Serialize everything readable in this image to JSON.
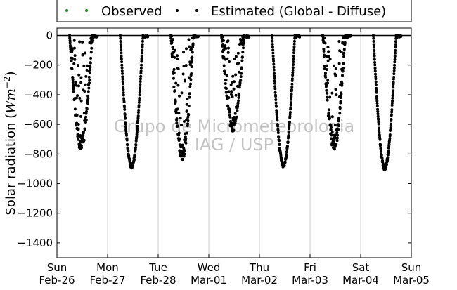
{
  "chart_data": {
    "type": "scatter",
    "title": "",
    "xlabel": "",
    "ylabel": "Solar radiation (Wm⁻²)",
    "ylabel_plain": "Solar radiation (",
    "ylabel_unit": "Wm",
    "ylabel_exp": "−2",
    "ylabel_close": ")",
    "xlim": [
      "2014-02-26T00:00",
      "2014-03-05T00:00"
    ],
    "ylim": [
      -1500,
      50
    ],
    "yticks": [
      0,
      -200,
      -400,
      -600,
      -800,
      -1000,
      -1200,
      -1400
    ],
    "ytick_labels": [
      "0",
      "−200",
      "−400",
      "−600",
      "−800",
      "−1000",
      "−1200",
      "−1400"
    ],
    "xticks": [
      {
        "day": "Sun",
        "date": "Feb-26"
      },
      {
        "day": "Mon",
        "date": "Feb-27"
      },
      {
        "day": "Tue",
        "date": "Feb-28"
      },
      {
        "day": "Wed",
        "date": "Mar-01"
      },
      {
        "day": "Thu",
        "date": "Mar-02"
      },
      {
        "day": "Fri",
        "date": "Mar-03"
      },
      {
        "day": "Sat",
        "date": "Mar-04"
      },
      {
        "day": "Sun",
        "date": "Mar-05"
      }
    ],
    "grid": "vertical day lines",
    "legend_position": "top-center, above plot",
    "watermark": [
      "Grupo de Micrometeorologia",
      "IAG / USP"
    ],
    "series": [
      {
        "name": "Observed",
        "color": "#1a8a1a",
        "marker": "dot",
        "points": []
      },
      {
        "name": "Estimated (Global - Diffuse)",
        "color": "#000000",
        "marker": "dot",
        "daily_profiles": [
          {
            "date": "2014-02-26",
            "min": -780,
            "pattern": "variable",
            "offset_start": 0.25,
            "offset_end": 0.7
          },
          {
            "date": "2014-02-27",
            "min": -900,
            "pattern": "clear",
            "offset_start": 0.25,
            "offset_end": 0.7
          },
          {
            "date": "2014-02-28",
            "min": -850,
            "pattern": "variable",
            "offset_start": 0.25,
            "offset_end": 0.7
          },
          {
            "date": "2014-03-01",
            "min": -650,
            "pattern": "variable",
            "offset_start": 0.25,
            "offset_end": 0.7
          },
          {
            "date": "2014-03-02",
            "min": -890,
            "pattern": "clear",
            "offset_start": 0.25,
            "offset_end": 0.7
          },
          {
            "date": "2014-03-03",
            "min": -790,
            "pattern": "variable",
            "offset_start": 0.25,
            "offset_end": 0.7
          },
          {
            "date": "2014-03-04",
            "min": -910,
            "pattern": "clear",
            "offset_start": 0.25,
            "offset_end": 0.7
          }
        ]
      }
    ]
  }
}
